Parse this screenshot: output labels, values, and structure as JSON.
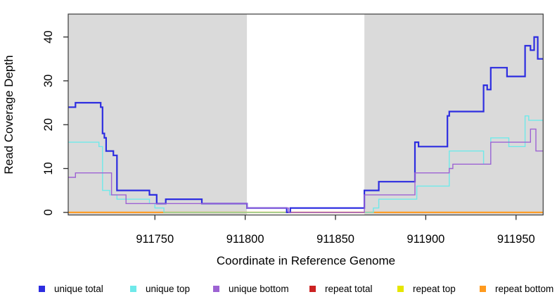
{
  "chart_data": {
    "type": "line",
    "subtype": "step",
    "title": "",
    "xlabel": "Coordinate in Reference Genome",
    "ylabel": "Read Coverage Depth",
    "xlim": [
      911702,
      911965
    ],
    "ylim": [
      0,
      45
    ],
    "x_ticks": [
      911750,
      911800,
      911850,
      911900,
      911950
    ],
    "y_ticks": [
      0,
      10,
      20,
      30,
      40
    ],
    "grid": false,
    "background_regions": [
      {
        "from": 911702,
        "to": 911801,
        "color": "#dadada"
      },
      {
        "from": 911801,
        "to": 911866,
        "color": "#ffffff"
      },
      {
        "from": 911866,
        "to": 911965,
        "color": "#dadada"
      }
    ],
    "series": [
      {
        "name": "repeat total",
        "color": "#cc2222",
        "width": 1.4,
        "points": [
          [
            911702,
            0
          ]
        ]
      },
      {
        "name": "repeat top",
        "color": "#e6e600",
        "width": 1.4,
        "points": [
          [
            911702,
            0
          ]
        ]
      },
      {
        "name": "repeat bottom",
        "color": "#ff9a1e",
        "width": 2.2,
        "points": [
          [
            911702,
            0
          ]
        ]
      },
      {
        "name": "unique top",
        "color": "#6fe9ea",
        "width": 1.4,
        "points": [
          [
            911702,
            16
          ],
          [
            911719,
            15
          ],
          [
            911721,
            5
          ],
          [
            911725,
            4
          ],
          [
            911729,
            3
          ],
          [
            911747,
            2
          ],
          [
            911750,
            1
          ],
          [
            911755,
            0
          ],
          [
            911871,
            1
          ],
          [
            911874,
            3
          ],
          [
            911895,
            6
          ],
          [
            911913,
            14
          ],
          [
            911932,
            11
          ],
          [
            911936,
            17
          ],
          [
            911946,
            15
          ],
          [
            911955,
            22
          ],
          [
            911957,
            21
          ]
        ]
      },
      {
        "name": "unique total",
        "color": "#2d2de0",
        "width": 2.2,
        "points": [
          [
            911702,
            24
          ],
          [
            911706,
            25
          ],
          [
            911720,
            24
          ],
          [
            911721,
            18
          ],
          [
            911722,
            17
          ],
          [
            911723,
            14
          ],
          [
            911727,
            13
          ],
          [
            911729,
            5
          ],
          [
            911747,
            4
          ],
          [
            911751,
            2
          ],
          [
            911756,
            3
          ],
          [
            911776,
            2
          ],
          [
            911801,
            1
          ],
          [
            911823,
            0
          ],
          [
            911825,
            1
          ],
          [
            911866,
            5
          ],
          [
            911874,
            7
          ],
          [
            911894,
            16
          ],
          [
            911896,
            15
          ],
          [
            911912,
            22
          ],
          [
            911913,
            23
          ],
          [
            911932,
            29
          ],
          [
            911934,
            28
          ],
          [
            911936,
            33
          ],
          [
            911945,
            31
          ],
          [
            911955,
            38
          ],
          [
            911958,
            37
          ],
          [
            911960,
            40
          ],
          [
            911962,
            35
          ]
        ]
      },
      {
        "name": "unique bottom",
        "color": "#9d63d3",
        "width": 1.4,
        "points": [
          [
            911702,
            8
          ],
          [
            911706,
            9
          ],
          [
            911726,
            4
          ],
          [
            911734,
            2
          ],
          [
            911801,
            1
          ],
          [
            911824,
            0
          ],
          [
            911866,
            4
          ],
          [
            911894,
            9
          ],
          [
            911913,
            10
          ],
          [
            911915,
            11
          ],
          [
            911936,
            16
          ],
          [
            911958,
            19
          ],
          [
            911961,
            14
          ]
        ]
      }
    ],
    "zero_line_overlays": [
      {
        "from": 911755,
        "to": 911824,
        "color": "#96d69b"
      },
      {
        "from": 911824,
        "to": 911866,
        "color": "#c85570"
      }
    ],
    "legend": {
      "position": "bottom",
      "entries": [
        {
          "label": "unique total",
          "color": "#2d2de0"
        },
        {
          "label": "unique top",
          "color": "#6fe9ea"
        },
        {
          "label": "unique bottom",
          "color": "#9d63d3"
        },
        {
          "label": "repeat total",
          "color": "#cc2222"
        },
        {
          "label": "repeat top",
          "color": "#e6e600"
        },
        {
          "label": "repeat bottom",
          "color": "#ff9a1e"
        }
      ]
    }
  }
}
